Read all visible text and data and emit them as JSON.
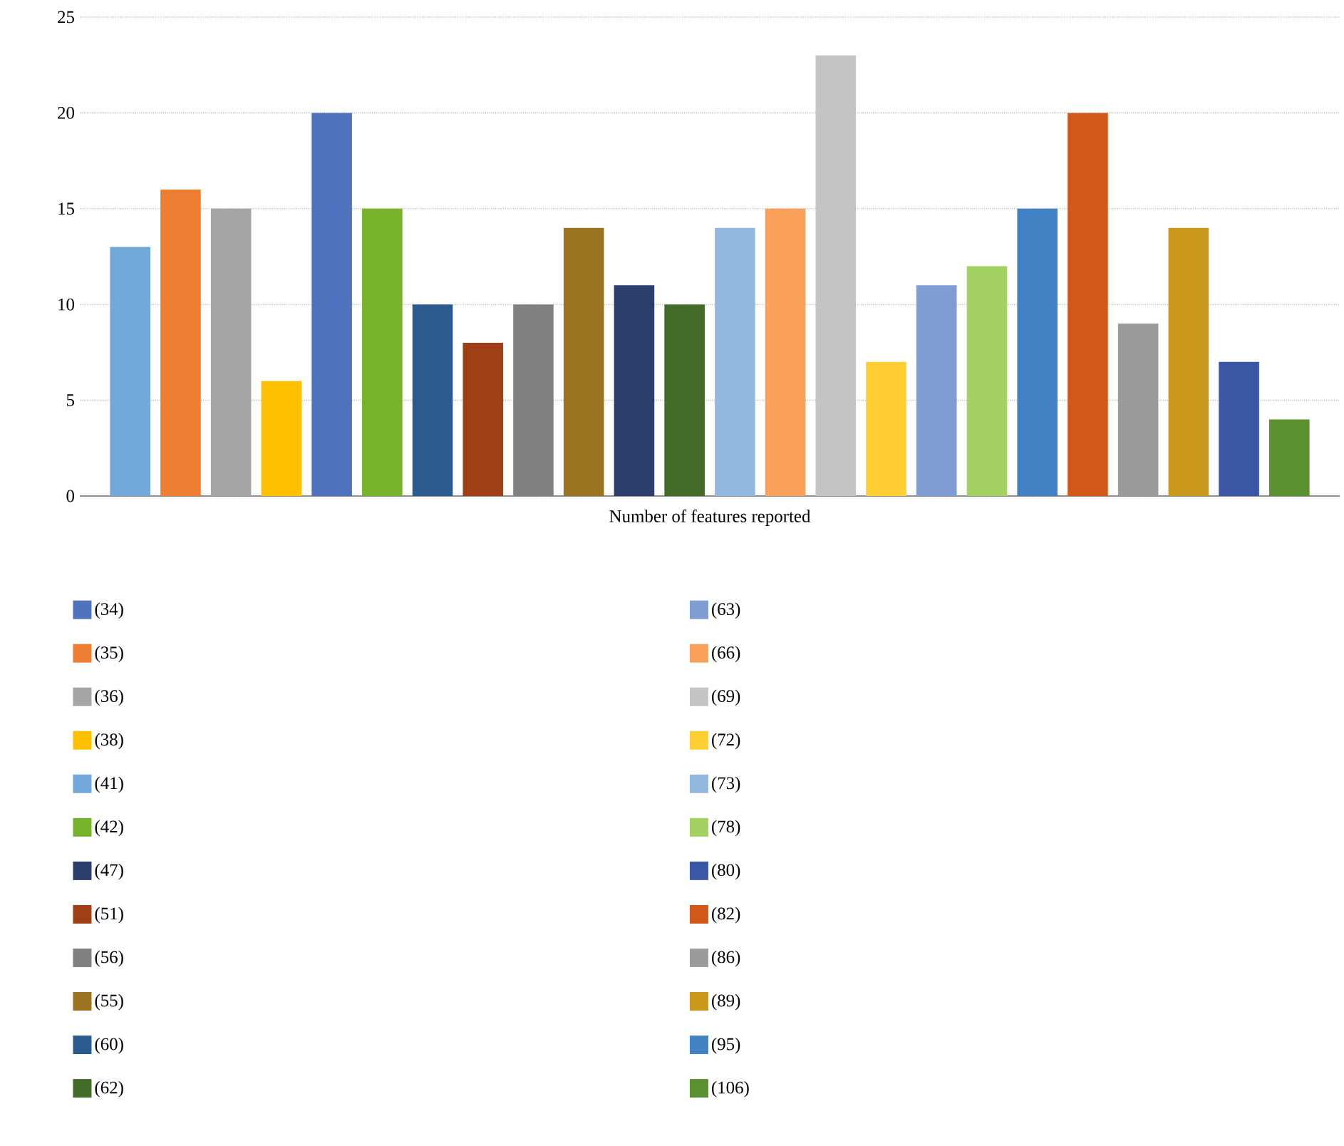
{
  "chart_data": {
    "type": "bar",
    "xlabel": "Number of features reported",
    "categories": [
      null,
      null,
      null,
      null,
      null,
      null,
      null,
      null,
      null,
      null,
      null,
      null,
      null,
      null,
      null,
      null,
      null,
      null,
      null,
      null,
      null,
      null,
      null,
      null
    ],
    "ylim": [
      0,
      25
    ],
    "yticks": [
      0,
      5,
      10,
      15,
      20,
      25
    ],
    "grid": "y",
    "legend": "bottom",
    "tick_labels": "y",
    "series": [
      {
        "name": "(34)",
        "color": "#4f72be",
        "values": [
          null,
          null,
          null,
          null,
          20,
          null,
          null,
          null,
          null,
          null,
          null,
          null,
          null,
          null,
          null,
          null,
          null,
          null,
          null,
          null,
          null,
          null,
          null,
          null
        ]
      },
      {
        "name": "(35)",
        "color": "#ed7d31",
        "values": [
          null,
          16,
          null,
          null,
          null,
          null,
          null,
          null,
          null,
          null,
          null,
          null,
          null,
          null,
          null,
          null,
          null,
          null,
          null,
          null,
          null,
          null,
          null,
          null
        ]
      },
      {
        "name": "(36)",
        "color": "#a5a5a5",
        "values": [
          null,
          null,
          15,
          null,
          null,
          null,
          null,
          null,
          null,
          null,
          null,
          null,
          null,
          null,
          null,
          null,
          null,
          null,
          null,
          null,
          null,
          null,
          null,
          null
        ]
      },
      {
        "name": "(38)",
        "color": "#ffc000",
        "values": [
          null,
          null,
          null,
          6,
          null,
          null,
          null,
          null,
          null,
          null,
          null,
          null,
          null,
          null,
          null,
          null,
          null,
          null,
          null,
          null,
          null,
          null,
          null,
          null
        ]
      },
      {
        "name": "(41)",
        "color": "#72a7d9",
        "values": [
          13,
          null,
          null,
          null,
          null,
          null,
          null,
          null,
          null,
          null,
          null,
          null,
          null,
          null,
          null,
          null,
          null,
          null,
          null,
          null,
          null,
          null,
          null,
          null
        ]
      },
      {
        "name": "(42)",
        "color": "#77b32a",
        "values": [
          null,
          null,
          null,
          null,
          null,
          15,
          null,
          null,
          null,
          null,
          null,
          null,
          null,
          null,
          null,
          null,
          null,
          null,
          null,
          null,
          null,
          null,
          null,
          null
        ]
      },
      {
        "name": "(47)",
        "color": "#2c3e6e",
        "values": [
          null,
          null,
          null,
          null,
          null,
          null,
          null,
          null,
          null,
          null,
          11,
          null,
          null,
          null,
          null,
          null,
          null,
          null,
          null,
          null,
          null,
          null,
          null,
          null
        ]
      },
      {
        "name": "(51)",
        "color": "#9e3f16",
        "values": [
          null,
          null,
          null,
          null,
          null,
          null,
          null,
          8,
          null,
          null,
          null,
          null,
          null,
          null,
          null,
          null,
          null,
          null,
          null,
          null,
          null,
          null,
          null,
          null
        ]
      },
      {
        "name": "(56)",
        "color": "#808080",
        "values": [
          null,
          null,
          null,
          null,
          null,
          null,
          null,
          null,
          10,
          null,
          null,
          null,
          null,
          null,
          null,
          null,
          null,
          null,
          null,
          null,
          null,
          null,
          null,
          null
        ]
      },
      {
        "name": "(55)",
        "color": "#9a7220",
        "values": [
          null,
          null,
          null,
          null,
          null,
          null,
          null,
          null,
          null,
          14,
          null,
          null,
          null,
          null,
          null,
          null,
          null,
          null,
          null,
          null,
          null,
          null,
          null,
          null
        ]
      },
      {
        "name": "(60)",
        "color": "#2a5a8e",
        "values": [
          null,
          null,
          null,
          null,
          null,
          null,
          10,
          null,
          null,
          null,
          null,
          null,
          null,
          null,
          null,
          null,
          null,
          null,
          null,
          null,
          null,
          null,
          null,
          null
        ]
      },
      {
        "name": "(62)",
        "color": "#436b28",
        "values": [
          null,
          null,
          null,
          null,
          null,
          null,
          null,
          null,
          null,
          null,
          null,
          10,
          null,
          null,
          null,
          null,
          null,
          null,
          null,
          null,
          null,
          null,
          null,
          null
        ]
      },
      {
        "name": "(63)",
        "color": "#7f9dd3",
        "values": [
          null,
          null,
          null,
          null,
          null,
          null,
          null,
          null,
          null,
          null,
          null,
          null,
          null,
          null,
          null,
          null,
          11,
          null,
          null,
          null,
          null,
          null,
          null,
          null
        ]
      },
      {
        "name": "(66)",
        "color": "#f9a05a",
        "values": [
          null,
          null,
          null,
          null,
          null,
          null,
          null,
          null,
          null,
          null,
          null,
          null,
          null,
          15,
          null,
          null,
          null,
          null,
          null,
          null,
          null,
          null,
          null,
          null
        ]
      },
      {
        "name": "(69)",
        "color": "#c4c4c4",
        "values": [
          null,
          null,
          null,
          null,
          null,
          null,
          null,
          null,
          null,
          null,
          null,
          null,
          null,
          null,
          23,
          null,
          null,
          null,
          null,
          null,
          null,
          null,
          null,
          null
        ]
      },
      {
        "name": "(72)",
        "color": "#ffcf33",
        "values": [
          null,
          null,
          null,
          null,
          null,
          null,
          null,
          null,
          null,
          null,
          null,
          null,
          null,
          null,
          null,
          7,
          null,
          null,
          null,
          null,
          null,
          null,
          null,
          null
        ]
      },
      {
        "name": "(73)",
        "color": "#93b8e0",
        "values": [
          null,
          null,
          null,
          null,
          null,
          null,
          null,
          null,
          null,
          null,
          null,
          null,
          14,
          null,
          null,
          null,
          null,
          null,
          null,
          null,
          null,
          null,
          null,
          null
        ]
      },
      {
        "name": "(78)",
        "color": "#a3d163",
        "values": [
          null,
          null,
          null,
          null,
          null,
          null,
          null,
          null,
          null,
          null,
          null,
          null,
          null,
          null,
          null,
          null,
          null,
          12,
          null,
          null,
          null,
          null,
          null,
          null
        ]
      },
      {
        "name": "(80)",
        "color": "#3c56a6",
        "values": [
          null,
          null,
          null,
          null,
          null,
          null,
          null,
          null,
          null,
          null,
          null,
          null,
          null,
          null,
          null,
          null,
          null,
          null,
          null,
          null,
          null,
          null,
          7,
          null
        ]
      },
      {
        "name": "(82)",
        "color": "#d2581a",
        "values": [
          null,
          null,
          null,
          null,
          null,
          null,
          null,
          null,
          null,
          null,
          null,
          null,
          null,
          null,
          null,
          null,
          null,
          null,
          null,
          20,
          null,
          null,
          null,
          null
        ]
      },
      {
        "name": "(86)",
        "color": "#9b9b9b",
        "values": [
          null,
          null,
          null,
          null,
          null,
          null,
          null,
          null,
          null,
          null,
          null,
          null,
          null,
          null,
          null,
          null,
          null,
          null,
          null,
          null,
          9,
          null,
          null,
          null
        ]
      },
      {
        "name": "(89)",
        "color": "#c9981b",
        "values": [
          null,
          null,
          null,
          null,
          null,
          null,
          null,
          null,
          null,
          null,
          null,
          null,
          null,
          null,
          null,
          null,
          null,
          null,
          null,
          null,
          null,
          14,
          null,
          null
        ]
      },
      {
        "name": "(95)",
        "color": "#4282c4",
        "values": [
          null,
          null,
          null,
          null,
          null,
          null,
          null,
          null,
          null,
          null,
          null,
          null,
          null,
          null,
          null,
          null,
          null,
          null,
          15,
          null,
          null,
          null,
          null,
          null
        ]
      },
      {
        "name": "(106)",
        "color": "#5a912e",
        "values": [
          null,
          null,
          null,
          null,
          null,
          null,
          null,
          null,
          null,
          null,
          null,
          null,
          null,
          null,
          null,
          null,
          null,
          null,
          null,
          null,
          null,
          null,
          null,
          4
        ]
      }
    ]
  }
}
